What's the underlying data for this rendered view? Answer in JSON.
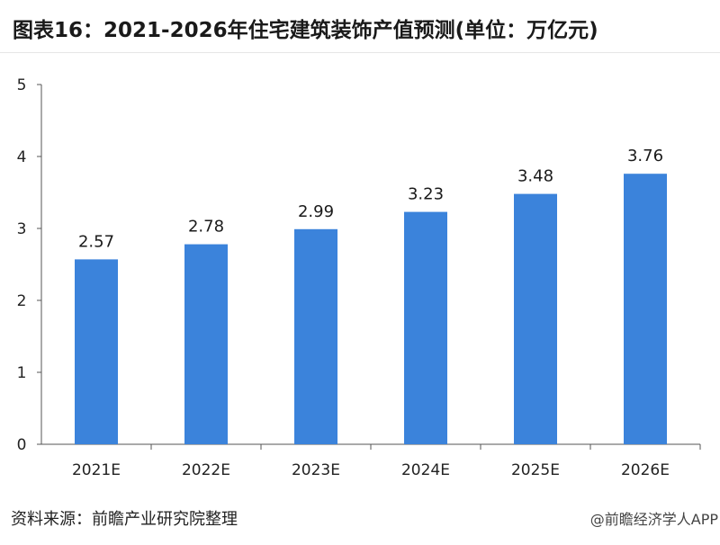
{
  "title": "图表16：2021-2026年住宅建筑装饰产值预测(单位：万亿元)",
  "source": "资料来源：前瞻产业研究院整理",
  "brand": "@前瞻经济学人APP",
  "bar_color": "#3b83db",
  "chart_data": {
    "type": "bar",
    "categories": [
      "2021E",
      "2022E",
      "2023E",
      "2024E",
      "2025E",
      "2026E"
    ],
    "values": [
      2.57,
      2.78,
      2.99,
      3.23,
      3.48,
      3.76
    ],
    "title": "图表16：2021-2026年住宅建筑装饰产值预测(单位：万亿元)",
    "xlabel": "",
    "ylabel": "",
    "ylim": [
      0,
      5
    ],
    "yticks": [
      0,
      1,
      2,
      3,
      4,
      5
    ],
    "grid": false,
    "legend": "none"
  }
}
